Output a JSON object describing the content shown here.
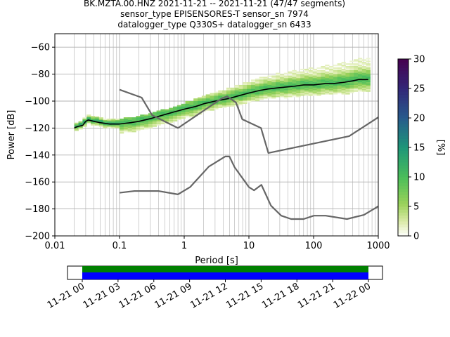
{
  "title_lines": [
    "BK.MZTA.00.HNZ   2021-11-21 -- 2021-11-21  (47/47 segments)",
    "sensor_type EPISENSORES-T sensor_sn 7974",
    "datalogger_type Q330S+ datalogger_sn 6433"
  ],
  "chart_data": [
    {
      "type": "heatmap",
      "subtype": "probabilistic-power-spectral-density",
      "xlabel": "Period [s]",
      "ylabel": "Power [dB]",
      "xscale": "log",
      "xlim": [
        0.01,
        1000
      ],
      "ylim": [
        -200,
        -50
      ],
      "x_ticks": [
        0.01,
        0.1,
        1,
        10,
        100,
        1000
      ],
      "x_tick_labels": [
        "0.01",
        "0.1",
        "1",
        "10",
        "100",
        "1000"
      ],
      "y_ticks": [
        -200,
        -180,
        -160,
        -140,
        -120,
        -100,
        -80,
        -60
      ],
      "y_tick_labels": [
        "−200",
        "−180",
        "−160",
        "−140",
        "−120",
        "−100",
        "−80",
        "−60"
      ],
      "grid": true,
      "colorbar": {
        "label": "[%]",
        "range": [
          0,
          30
        ],
        "ticks": [
          0,
          5,
          10,
          15,
          20,
          25,
          30
        ],
        "tick_labels": [
          "0",
          "5",
          "10",
          "15",
          "20",
          "25",
          "30"
        ]
      },
      "series": [
        {
          "role": "mode",
          "color": "#000000",
          "x": [
            0.02,
            0.022,
            0.027,
            0.03,
            0.033,
            0.04,
            0.05,
            0.07,
            0.1,
            0.15,
            0.2,
            0.3,
            0.5,
            0.7,
            1,
            1.5,
            2,
            3,
            5,
            7,
            10,
            15,
            20,
            30,
            50,
            70,
            100,
            150,
            200,
            300,
            400,
            500,
            700
          ],
          "y": [
            -120,
            -119,
            -118,
            -115,
            -114,
            -115,
            -116,
            -117,
            -117,
            -116,
            -115,
            -113,
            -110,
            -108,
            -106,
            -104,
            -102,
            -100,
            -98,
            -96,
            -94,
            -92,
            -91,
            -90,
            -89,
            -88,
            -88,
            -87,
            -87,
            -86,
            -85,
            -84,
            -84
          ]
        },
        {
          "role": "noise-model-high",
          "color": "#666666",
          "x": [
            0.1,
            0.22,
            0.32,
            0.8,
            3.8,
            4.6,
            6.3,
            7.9,
            15.4,
            20,
            354.8,
            1000
          ],
          "y": [
            -91.5,
            -97.4,
            -110.5,
            -120,
            -98,
            -96.5,
            -101,
            -113.5,
            -120,
            -138.5,
            -126,
            -112
          ]
        },
        {
          "role": "noise-model-low",
          "color": "#666666",
          "x": [
            0.1,
            0.17,
            0.4,
            0.8,
            1.24,
            2.4,
            4.3,
            5,
            6,
            10,
            12,
            15.6,
            21.9,
            31.6,
            45,
            70,
            101,
            154,
            328,
            600,
            1000
          ],
          "y": [
            -168,
            -166.7,
            -166.7,
            -169.2,
            -163.7,
            -148.6,
            -141.1,
            -141.1,
            -149,
            -163.8,
            -166.2,
            -162.1,
            -177.5,
            -185,
            -187.5,
            -187.5,
            -185,
            -185,
            -187.5,
            -184.4,
            -178
          ]
        }
      ]
    },
    {
      "type": "timeline",
      "x_tick_labels": [
        "11-21 00",
        "11-21 03",
        "11-21 06",
        "11-21 09",
        "11-21 12",
        "11-21 15",
        "11-21 18",
        "11-21 21",
        "11-22 00"
      ],
      "bands": [
        {
          "role": "data-coverage",
          "color": "#008000",
          "start_hour": 0,
          "end_hour": 24
        },
        {
          "role": "used-in-psd",
          "color": "#0000ff",
          "start_hour": 0,
          "end_hour": 24
        }
      ]
    }
  ]
}
